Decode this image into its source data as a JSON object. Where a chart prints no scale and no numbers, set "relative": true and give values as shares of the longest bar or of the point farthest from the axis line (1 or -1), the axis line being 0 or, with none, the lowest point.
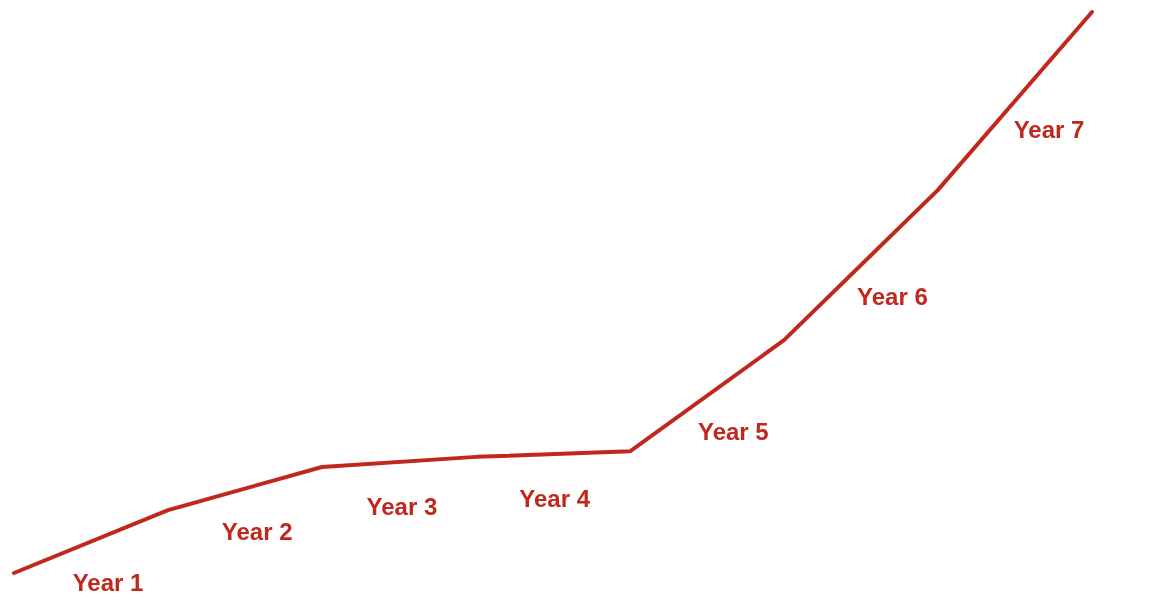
{
  "chart_data": {
    "type": "line",
    "relative": true,
    "categories": [
      null,
      null,
      null,
      null,
      null,
      null,
      null,
      null
    ],
    "series": [
      {
        "color": "#c0281e",
        "values": [
          0,
          0.112,
          0.189,
          0.207,
          0.217,
          0.415,
          0.683,
          1.0
        ]
      }
    ],
    "annotations": [
      "Year 1",
      "Year 2",
      "Year 3",
      "Year 4",
      "Year 5",
      "Year 6",
      "Year 7"
    ],
    "marker": "none",
    "line_style": "solid"
  }
}
